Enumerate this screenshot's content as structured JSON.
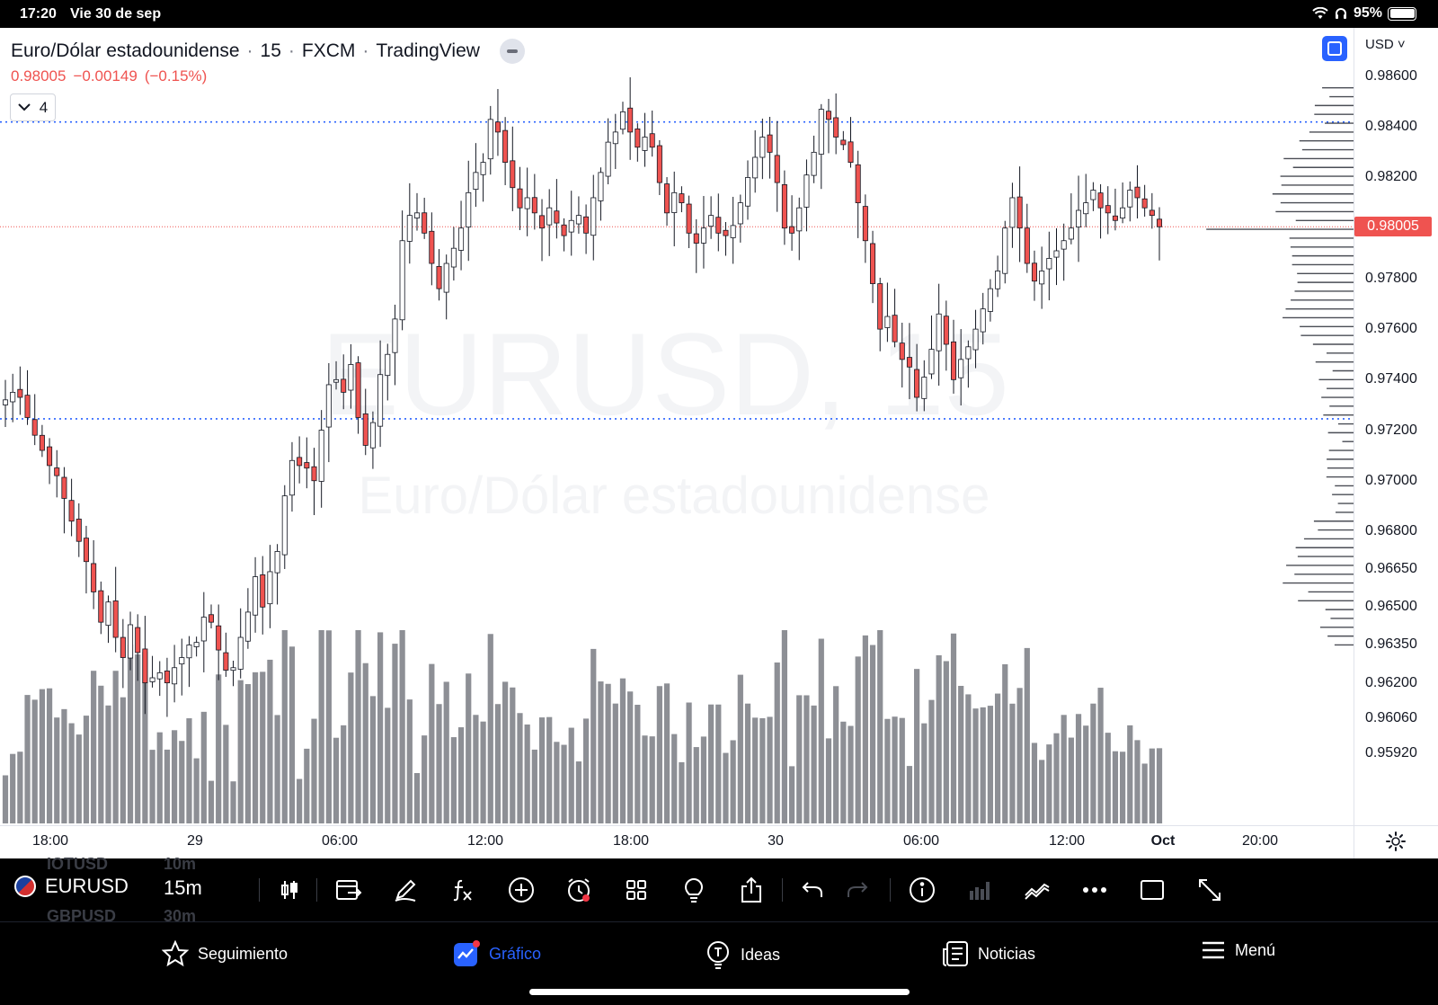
{
  "status_bar": {
    "time": "17:20",
    "date": "Vie 30 de sep",
    "battery": "95%"
  },
  "chart_header": {
    "symbol_description": "Euro/Dólar estadounidense",
    "interval": "15",
    "exchange": "FXCM",
    "source": "TradingView",
    "price": "0.98005",
    "change": "−0.00149",
    "change_pct": "(−0.15%)",
    "indicators_count": "4",
    "currency": "USD"
  },
  "watermark": {
    "line1": "EURUSD, 15",
    "line2": "Euro/Dólar estadounidense"
  },
  "price_axis": {
    "labels": [
      "0.98600",
      "0.98400",
      "0.98200",
      "0.98005",
      "0.97800",
      "0.97600",
      "0.97400",
      "0.97200",
      "0.97000",
      "0.96800",
      "0.96650",
      "0.96500",
      "0.96350",
      "0.96200",
      "0.96060",
      "0.95920"
    ],
    "last_price_label": "0.98005"
  },
  "time_axis": {
    "labels": [
      "18:00",
      "29",
      "06:00",
      "12:00",
      "18:00",
      "30",
      "06:00",
      "12:00",
      "Oct",
      "20:00"
    ]
  },
  "toolbar": {
    "symbol": "EURUSD",
    "interval": "15m",
    "ghost_symbols": [
      {
        "symbol": "IOTUSD",
        "interval": "10m"
      },
      {
        "symbol": "GBPUSD",
        "interval": "30m"
      }
    ],
    "icons": [
      "candle-type-icon",
      "compare-icon",
      "draw-brush-icon",
      "function-icon",
      "add-icon",
      "alert-icon",
      "layout-grid-icon",
      "idea-bulb-icon",
      "share-icon",
      "undo-icon",
      "redo-icon",
      "info-icon",
      "volume-icon",
      "indicator-line-icon",
      "more-icon",
      "fullscreen-window-icon",
      "expand-icon"
    ]
  },
  "tab_bar": {
    "tabs": [
      {
        "label": "Seguimiento",
        "icon": "star-icon",
        "active": false
      },
      {
        "label": "Gráfico",
        "icon": "chart-icon",
        "active": true
      },
      {
        "label": "Ideas",
        "icon": "idea-icon",
        "active": false
      },
      {
        "label": "Noticias",
        "icon": "news-icon",
        "active": false
      },
      {
        "label": "Menú",
        "icon": "hamburger-icon",
        "active": false
      }
    ]
  },
  "chart_data": {
    "type": "candlestick",
    "symbol": "EURUSD",
    "interval": "15",
    "price_range": [
      0.9585,
      0.9865
    ],
    "horizontal_lines": [
      0.9842,
      0.97245
    ],
    "last_price": 0.98005,
    "closes": [
      0.9732,
      0.9735,
      0.9733,
      0.9725,
      0.9718,
      0.9712,
      0.9706,
      0.9702,
      0.9693,
      0.9684,
      0.9676,
      0.9668,
      0.9656,
      0.9644,
      0.9652,
      0.9638,
      0.963,
      0.9643,
      0.9632,
      0.962,
      0.9622,
      0.9624,
      0.962,
      0.9626,
      0.963,
      0.9635,
      0.9636,
      0.9646,
      0.9644,
      0.9633,
      0.9625,
      0.9626,
      0.9638,
      0.9648,
      0.9662,
      0.965,
      0.9664,
      0.9672,
      0.9694,
      0.9708,
      0.9706,
      0.9705,
      0.97,
      0.972,
      0.9738,
      0.974,
      0.9735,
      0.9746,
      0.9725,
      0.9714,
      0.9723,
      0.9742,
      0.975,
      0.9764,
      0.9795,
      0.9805,
      0.9806,
      0.9798,
      0.9786,
      0.9776,
      0.9786,
      0.9792,
      0.98,
      0.9814,
      0.9822,
      0.9826,
      0.9843,
      0.9838,
      0.9826,
      0.9816,
      0.9808,
      0.9812,
      0.9806,
      0.98,
      0.9808,
      0.9802,
      0.9797,
      0.9803,
      0.9805,
      0.9798,
      0.9812,
      0.9822,
      0.9834,
      0.9838,
      0.9846,
      0.9838,
      0.9832,
      0.9836,
      0.9832,
      0.9818,
      0.9806,
      0.9814,
      0.981,
      0.9798,
      0.9794,
      0.98,
      0.9805,
      0.9798,
      0.9797,
      0.9801,
      0.981,
      0.982,
      0.9828,
      0.9836,
      0.983,
      0.9818,
      0.98,
      0.9798,
      0.9808,
      0.9821,
      0.983,
      0.9847,
      0.9843,
      0.9836,
      0.9833,
      0.9826,
      0.981,
      0.9795,
      0.9778,
      0.976,
      0.9765,
      0.9755,
      0.9748,
      0.9745,
      0.9733,
      0.9741,
      0.9752,
      0.9766,
      0.9754,
      0.974,
      0.9748,
      0.9753,
      0.976,
      0.9768,
      0.9776,
      0.9783,
      0.98,
      0.9812,
      0.98,
      0.9786,
      0.9779,
      0.9783,
      0.9788,
      0.9791,
      0.9795,
      0.98,
      0.9807,
      0.981,
      0.9815,
      0.9808,
      0.9806,
      0.9803,
      0.9808,
      0.9815,
      0.9812,
      0.9808,
      0.9805,
      0.98005
    ],
    "volume_scale_max": 100
  }
}
